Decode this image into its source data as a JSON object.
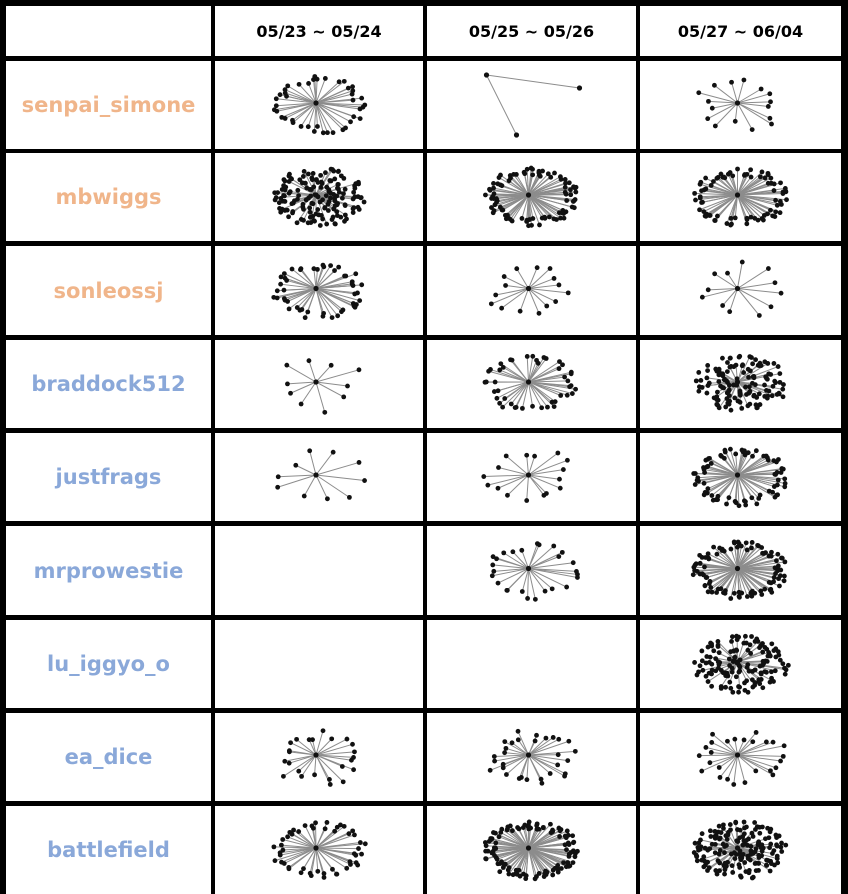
{
  "header": {
    "periods": [
      "05/23 ~ 05/24",
      "05/25 ~ 05/26",
      "05/27 ~ 06/04"
    ]
  },
  "colors": {
    "group_a": "#f0b58a",
    "group_b": "#8aa8d9",
    "edge": "#8c8c8c",
    "node": "#111111"
  },
  "rows": [
    {
      "label": "senpai_simone",
      "group": "a",
      "graphs": [
        {
          "nodes": 42,
          "style": "ellipse"
        },
        {
          "nodes": 3,
          "style": "sparse"
        },
        {
          "nodes": 16,
          "style": "star"
        }
      ]
    },
    {
      "label": "mbwiggs",
      "group": "a",
      "graphs": [
        {
          "nodes": 160,
          "style": "dense"
        },
        {
          "nodes": 90,
          "style": "ellipse"
        },
        {
          "nodes": 80,
          "style": "ellipse"
        }
      ]
    },
    {
      "label": "sonleossj",
      "group": "a",
      "graphs": [
        {
          "nodes": 48,
          "style": "ellipse"
        },
        {
          "nodes": 15,
          "style": "star"
        },
        {
          "nodes": 12,
          "style": "star"
        }
      ]
    },
    {
      "label": "braddock512",
      "group": "b",
      "graphs": [
        {
          "nodes": 10,
          "style": "star"
        },
        {
          "nodes": 45,
          "style": "ellipse"
        },
        {
          "nodes": 130,
          "style": "dense"
        }
      ]
    },
    {
      "label": "justfrags",
      "group": "b",
      "graphs": [
        {
          "nodes": 10,
          "style": "star"
        },
        {
          "nodes": 16,
          "style": "star"
        },
        {
          "nodes": 75,
          "style": "ellipse"
        }
      ]
    },
    {
      "label": "mrprowestie",
      "group": "b",
      "graphs": [
        null,
        {
          "nodes": 26,
          "style": "ellipse"
        },
        {
          "nodes": 95,
          "style": "ellipse"
        }
      ]
    },
    {
      "label": "lu_iggyo_o",
      "group": "b",
      "graphs": [
        null,
        null,
        {
          "nodes": 140,
          "style": "dense"
        }
      ]
    },
    {
      "label": "ea_dice",
      "group": "b",
      "graphs": [
        {
          "nodes": 24,
          "style": "star"
        },
        {
          "nodes": 30,
          "style": "star"
        },
        {
          "nodes": 26,
          "style": "star"
        }
      ]
    },
    {
      "label": "battlefield",
      "group": "b",
      "graphs": [
        {
          "nodes": 50,
          "style": "ellipse"
        },
        {
          "nodes": 110,
          "style": "ellipse"
        },
        {
          "nodes": 170,
          "style": "dense"
        }
      ]
    }
  ]
}
